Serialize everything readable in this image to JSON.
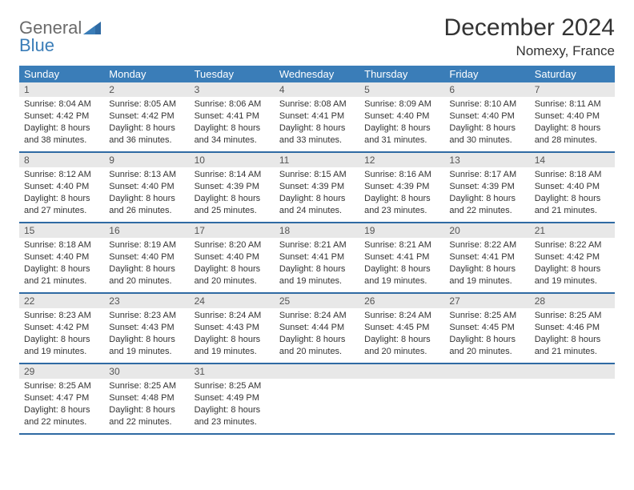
{
  "logo": {
    "text1": "General",
    "text2": "Blue"
  },
  "header": {
    "title": "December 2024",
    "location": "Nomexy, France"
  },
  "colors": {
    "header_bg": "#3a7db8",
    "week_divider": "#2f6aa3",
    "daynum_bg": "#e8e8e8",
    "text": "#333333",
    "logo_gray": "#6b6b6b",
    "logo_blue": "#3a7db8",
    "page_bg": "#ffffff"
  },
  "typography": {
    "title_fontsize": 30,
    "location_fontsize": 17,
    "dow_fontsize": 13,
    "cell_fontsize": 11,
    "daynum_fontsize": 12
  },
  "days_of_week": [
    "Sunday",
    "Monday",
    "Tuesday",
    "Wednesday",
    "Thursday",
    "Friday",
    "Saturday"
  ],
  "weeks": [
    [
      {
        "n": "1",
        "sunrise": "Sunrise: 8:04 AM",
        "sunset": "Sunset: 4:42 PM",
        "daylight": "Daylight: 8 hours and 38 minutes."
      },
      {
        "n": "2",
        "sunrise": "Sunrise: 8:05 AM",
        "sunset": "Sunset: 4:42 PM",
        "daylight": "Daylight: 8 hours and 36 minutes."
      },
      {
        "n": "3",
        "sunrise": "Sunrise: 8:06 AM",
        "sunset": "Sunset: 4:41 PM",
        "daylight": "Daylight: 8 hours and 34 minutes."
      },
      {
        "n": "4",
        "sunrise": "Sunrise: 8:08 AM",
        "sunset": "Sunset: 4:41 PM",
        "daylight": "Daylight: 8 hours and 33 minutes."
      },
      {
        "n": "5",
        "sunrise": "Sunrise: 8:09 AM",
        "sunset": "Sunset: 4:40 PM",
        "daylight": "Daylight: 8 hours and 31 minutes."
      },
      {
        "n": "6",
        "sunrise": "Sunrise: 8:10 AM",
        "sunset": "Sunset: 4:40 PM",
        "daylight": "Daylight: 8 hours and 30 minutes."
      },
      {
        "n": "7",
        "sunrise": "Sunrise: 8:11 AM",
        "sunset": "Sunset: 4:40 PM",
        "daylight": "Daylight: 8 hours and 28 minutes."
      }
    ],
    [
      {
        "n": "8",
        "sunrise": "Sunrise: 8:12 AM",
        "sunset": "Sunset: 4:40 PM",
        "daylight": "Daylight: 8 hours and 27 minutes."
      },
      {
        "n": "9",
        "sunrise": "Sunrise: 8:13 AM",
        "sunset": "Sunset: 4:40 PM",
        "daylight": "Daylight: 8 hours and 26 minutes."
      },
      {
        "n": "10",
        "sunrise": "Sunrise: 8:14 AM",
        "sunset": "Sunset: 4:39 PM",
        "daylight": "Daylight: 8 hours and 25 minutes."
      },
      {
        "n": "11",
        "sunrise": "Sunrise: 8:15 AM",
        "sunset": "Sunset: 4:39 PM",
        "daylight": "Daylight: 8 hours and 24 minutes."
      },
      {
        "n": "12",
        "sunrise": "Sunrise: 8:16 AM",
        "sunset": "Sunset: 4:39 PM",
        "daylight": "Daylight: 8 hours and 23 minutes."
      },
      {
        "n": "13",
        "sunrise": "Sunrise: 8:17 AM",
        "sunset": "Sunset: 4:39 PM",
        "daylight": "Daylight: 8 hours and 22 minutes."
      },
      {
        "n": "14",
        "sunrise": "Sunrise: 8:18 AM",
        "sunset": "Sunset: 4:40 PM",
        "daylight": "Daylight: 8 hours and 21 minutes."
      }
    ],
    [
      {
        "n": "15",
        "sunrise": "Sunrise: 8:18 AM",
        "sunset": "Sunset: 4:40 PM",
        "daylight": "Daylight: 8 hours and 21 minutes."
      },
      {
        "n": "16",
        "sunrise": "Sunrise: 8:19 AM",
        "sunset": "Sunset: 4:40 PM",
        "daylight": "Daylight: 8 hours and 20 minutes."
      },
      {
        "n": "17",
        "sunrise": "Sunrise: 8:20 AM",
        "sunset": "Sunset: 4:40 PM",
        "daylight": "Daylight: 8 hours and 20 minutes."
      },
      {
        "n": "18",
        "sunrise": "Sunrise: 8:21 AM",
        "sunset": "Sunset: 4:41 PM",
        "daylight": "Daylight: 8 hours and 19 minutes."
      },
      {
        "n": "19",
        "sunrise": "Sunrise: 8:21 AM",
        "sunset": "Sunset: 4:41 PM",
        "daylight": "Daylight: 8 hours and 19 minutes."
      },
      {
        "n": "20",
        "sunrise": "Sunrise: 8:22 AM",
        "sunset": "Sunset: 4:41 PM",
        "daylight": "Daylight: 8 hours and 19 minutes."
      },
      {
        "n": "21",
        "sunrise": "Sunrise: 8:22 AM",
        "sunset": "Sunset: 4:42 PM",
        "daylight": "Daylight: 8 hours and 19 minutes."
      }
    ],
    [
      {
        "n": "22",
        "sunrise": "Sunrise: 8:23 AM",
        "sunset": "Sunset: 4:42 PM",
        "daylight": "Daylight: 8 hours and 19 minutes."
      },
      {
        "n": "23",
        "sunrise": "Sunrise: 8:23 AM",
        "sunset": "Sunset: 4:43 PM",
        "daylight": "Daylight: 8 hours and 19 minutes."
      },
      {
        "n": "24",
        "sunrise": "Sunrise: 8:24 AM",
        "sunset": "Sunset: 4:43 PM",
        "daylight": "Daylight: 8 hours and 19 minutes."
      },
      {
        "n": "25",
        "sunrise": "Sunrise: 8:24 AM",
        "sunset": "Sunset: 4:44 PM",
        "daylight": "Daylight: 8 hours and 20 minutes."
      },
      {
        "n": "26",
        "sunrise": "Sunrise: 8:24 AM",
        "sunset": "Sunset: 4:45 PM",
        "daylight": "Daylight: 8 hours and 20 minutes."
      },
      {
        "n": "27",
        "sunrise": "Sunrise: 8:25 AM",
        "sunset": "Sunset: 4:45 PM",
        "daylight": "Daylight: 8 hours and 20 minutes."
      },
      {
        "n": "28",
        "sunrise": "Sunrise: 8:25 AM",
        "sunset": "Sunset: 4:46 PM",
        "daylight": "Daylight: 8 hours and 21 minutes."
      }
    ],
    [
      {
        "n": "29",
        "sunrise": "Sunrise: 8:25 AM",
        "sunset": "Sunset: 4:47 PM",
        "daylight": "Daylight: 8 hours and 22 minutes."
      },
      {
        "n": "30",
        "sunrise": "Sunrise: 8:25 AM",
        "sunset": "Sunset: 4:48 PM",
        "daylight": "Daylight: 8 hours and 22 minutes."
      },
      {
        "n": "31",
        "sunrise": "Sunrise: 8:25 AM",
        "sunset": "Sunset: 4:49 PM",
        "daylight": "Daylight: 8 hours and 23 minutes."
      },
      {
        "n": "",
        "sunrise": "",
        "sunset": "",
        "daylight": ""
      },
      {
        "n": "",
        "sunrise": "",
        "sunset": "",
        "daylight": ""
      },
      {
        "n": "",
        "sunrise": "",
        "sunset": "",
        "daylight": ""
      },
      {
        "n": "",
        "sunrise": "",
        "sunset": "",
        "daylight": ""
      }
    ]
  ]
}
